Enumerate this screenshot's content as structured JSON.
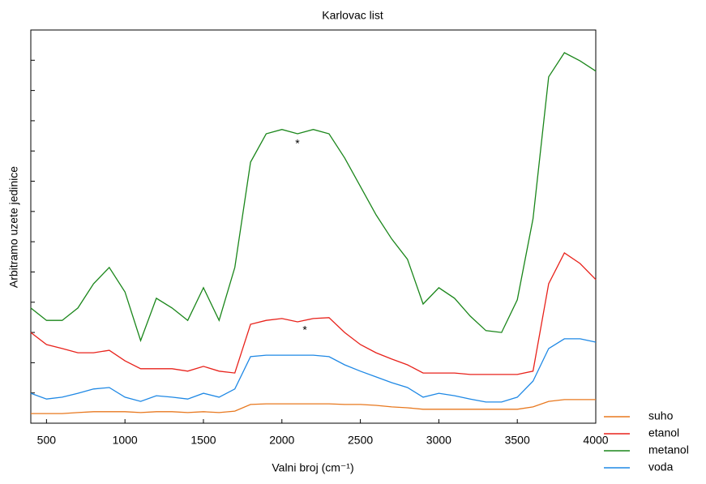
{
  "chart_data": {
    "type": "line",
    "title": "Karlovac list",
    "xlabel": "Valni broj (cm⁻¹)",
    "ylabel": "Arbitramo uzete jedinice",
    "x": [
      400,
      500,
      600,
      700,
      800,
      900,
      1000,
      1100,
      1200,
      1300,
      1400,
      1500,
      1600,
      1700,
      1800,
      1900,
      2000,
      2100,
      2200,
      2300,
      2400,
      2500,
      2600,
      2700,
      2800,
      2900,
      3000,
      3100,
      3200,
      3300,
      3400,
      3500,
      3600,
      3700,
      3800,
      3900,
      4000
    ],
    "series": [
      {
        "name": "suho",
        "color": "#e8781e",
        "values": [
          0.32,
          0.32,
          0.32,
          0.35,
          0.38,
          0.38,
          0.38,
          0.35,
          0.38,
          0.38,
          0.35,
          0.38,
          0.35,
          0.4,
          0.62,
          0.64,
          0.64,
          0.64,
          0.64,
          0.64,
          0.62,
          0.62,
          0.59,
          0.54,
          0.51,
          0.46,
          0.46,
          0.46,
          0.46,
          0.46,
          0.46,
          0.46,
          0.54,
          0.72,
          0.78,
          0.78,
          0.78
        ]
      },
      {
        "name": "etanol",
        "color": "#e8221b",
        "values": [
          3.0,
          2.6,
          2.47,
          2.33,
          2.33,
          2.41,
          2.06,
          1.8,
          1.8,
          1.8,
          1.72,
          1.88,
          1.72,
          1.66,
          3.27,
          3.4,
          3.46,
          3.35,
          3.46,
          3.49,
          3.0,
          2.6,
          2.33,
          2.12,
          1.93,
          1.66,
          1.66,
          1.66,
          1.61,
          1.61,
          1.61,
          1.61,
          1.72,
          4.61,
          5.63,
          5.28,
          4.75
        ]
      },
      {
        "name": "metanol",
        "color": "#1a861a",
        "values": [
          3.81,
          3.4,
          3.4,
          3.81,
          4.61,
          5.15,
          4.34,
          2.73,
          4.13,
          3.81,
          3.4,
          4.48,
          3.4,
          5.15,
          8.63,
          9.57,
          9.71,
          9.57,
          9.71,
          9.57,
          8.77,
          7.83,
          6.89,
          6.09,
          5.42,
          3.94,
          4.48,
          4.13,
          3.54,
          3.06,
          3.0,
          4.08,
          6.76,
          11.45,
          12.25,
          11.98,
          11.64
        ]
      },
      {
        "name": "voda",
        "color": "#1e88e5",
        "values": [
          0.99,
          0.8,
          0.86,
          0.99,
          1.13,
          1.18,
          0.86,
          0.72,
          0.91,
          0.86,
          0.8,
          0.99,
          0.86,
          1.13,
          2.2,
          2.25,
          2.25,
          2.25,
          2.25,
          2.2,
          1.93,
          1.72,
          1.53,
          1.34,
          1.18,
          0.86,
          0.99,
          0.91,
          0.8,
          0.7,
          0.7,
          0.86,
          1.39,
          2.47,
          2.79,
          2.79,
          2.68
        ]
      }
    ],
    "annotations": [
      {
        "text": "*",
        "x": 2099,
        "y": 9.22
      },
      {
        "text": "*",
        "x": 2146,
        "y": 3.06
      }
    ],
    "xlim": [
      400,
      4000
    ],
    "xticks": [
      500,
      1000,
      1500,
      2000,
      2500,
      3000,
      3500,
      4000
    ],
    "ylim": [
      0,
      13
    ],
    "yticks": [
      0,
      1,
      2,
      3,
      4,
      5,
      6,
      7,
      8,
      9,
      10,
      11,
      12,
      13
    ],
    "legend": "lower right outside"
  }
}
